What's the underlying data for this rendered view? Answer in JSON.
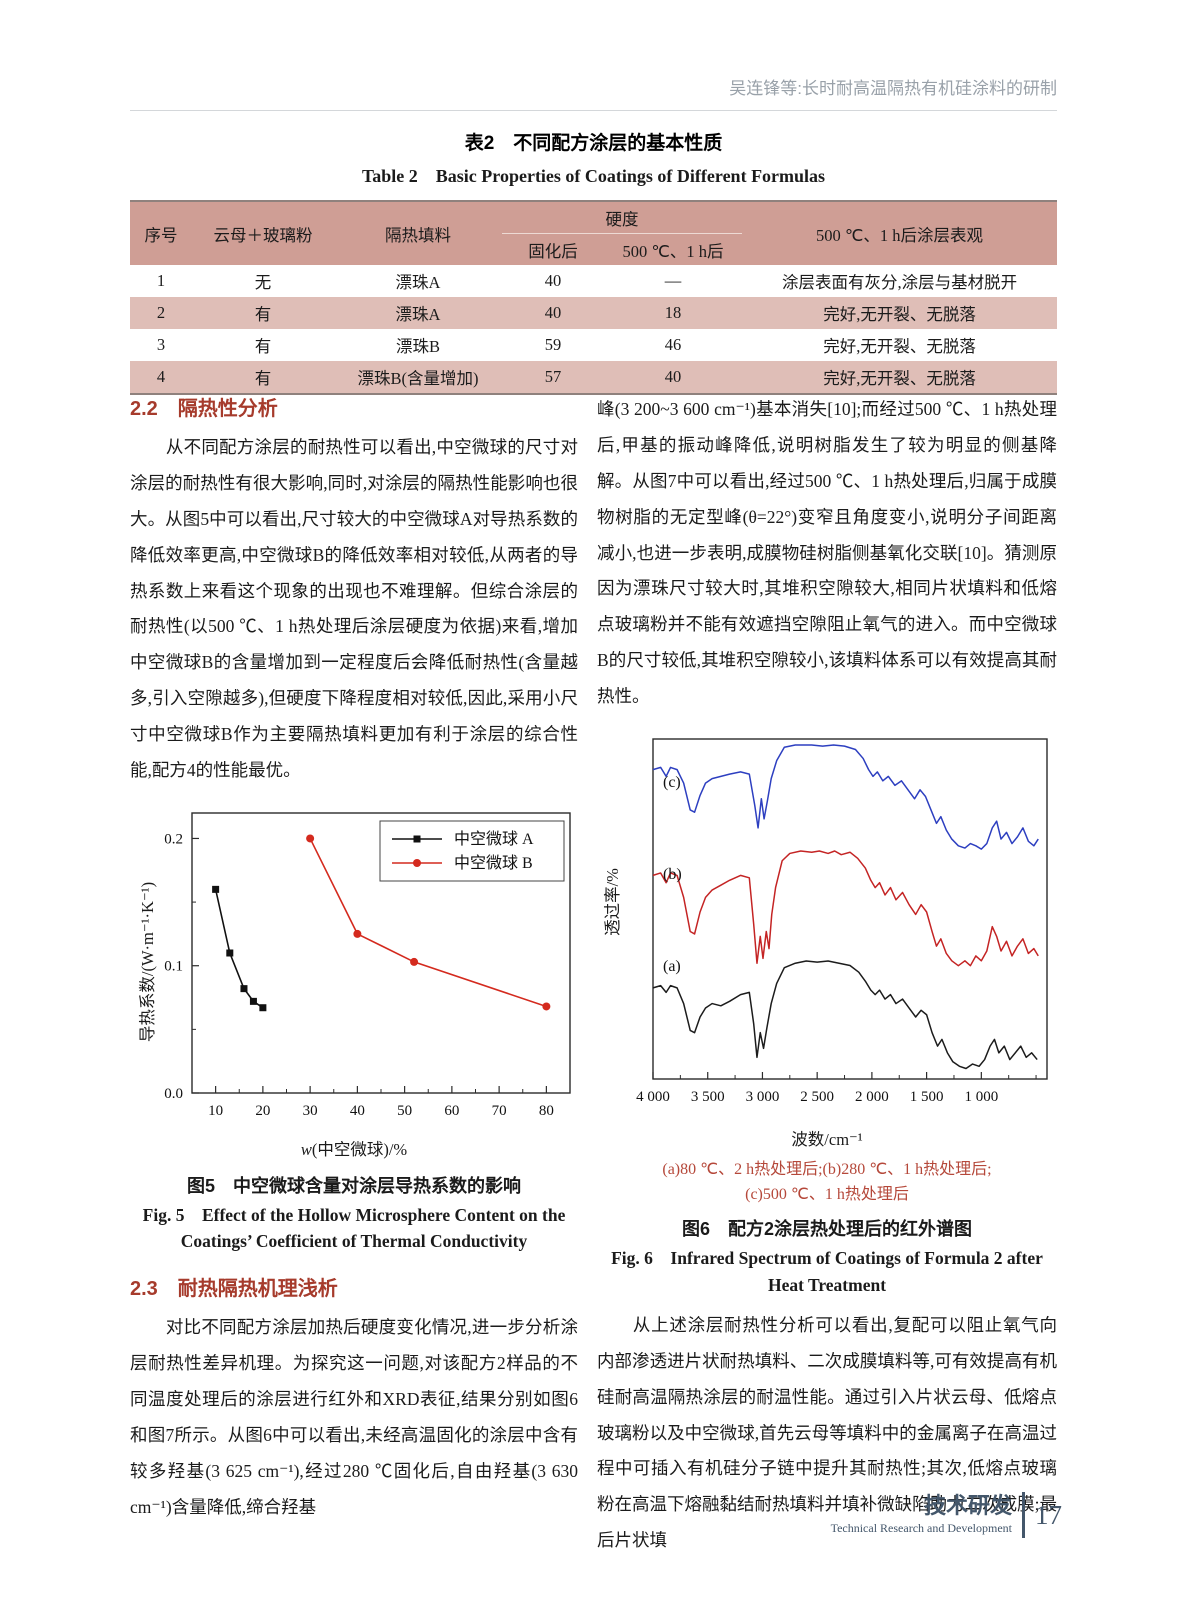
{
  "running_head": "吴连锋等:长时耐高温隔热有机硅涂料的研制",
  "table2": {
    "title_cn": "表2　不同配方涂层的基本性质",
    "title_en": "Table 2　Basic Properties of Coatings of Different Formulas",
    "headers": {
      "no": "序号",
      "mica": "云母＋玻璃粉",
      "filler": "隔热填料",
      "hardness_group": "硬度",
      "cured": "固化后",
      "after500": "500 ℃、1 h后",
      "appearance": "500 ℃、1 h后涂层表观"
    },
    "rows": [
      {
        "no": "1",
        "mica": "无",
        "filler": "漂珠A",
        "cured": "40",
        "after500": "—",
        "appearance": "涂层表面有灰分,涂层与基材脱开"
      },
      {
        "no": "2",
        "mica": "有",
        "filler": "漂珠A",
        "cured": "40",
        "after500": "18",
        "appearance": "完好,无开裂、无脱落"
      },
      {
        "no": "3",
        "mica": "有",
        "filler": "漂珠B",
        "cured": "59",
        "after500": "46",
        "appearance": "完好,无开裂、无脱落"
      },
      {
        "no": "4",
        "mica": "有",
        "filler": "漂珠B(含量增加)",
        "cured": "57",
        "after500": "40",
        "appearance": "完好,无开裂、无脱落"
      }
    ]
  },
  "sections": {
    "s22_heading": "2.2　隔热性分析",
    "s22_body": "从不同配方涂层的耐热性可以看出,中空微球的尺寸对涂层的耐热性有很大影响,同时,对涂层的隔热性能影响也很大。从图5中可以看出,尺寸较大的中空微球A对导热系数的降低效率更高,中空微球B的降低效率相对较低,从两者的导热系数上来看这个现象的出现也不难理解。但综合涂层的耐热性(以500 ℃、1 h热处理后涂层硬度为依据)来看,增加中空微球B的含量增加到一定程度后会降低耐热性(含量越多,引入空隙越多),但硬度下降程度相对较低,因此,采用小尺寸中空微球B作为主要隔热填料更加有利于涂层的综合性能,配方4的性能最优。",
    "right_top": "峰(3 200~3 600 cm⁻¹)基本消失[10];而经过500 ℃、1 h热处理后,甲基的振动峰降低,说明树脂发生了较为明显的侧基降解。从图7中可以看出,经过500 ℃、1 h热处理后,归属于成膜物树脂的无定型峰(θ=22°)变窄且角度变小,说明分子间距离减小,也进一步表明,成膜物硅树脂侧基氧化交联[10]。猜测原因为漂珠尺寸较大时,其堆积空隙较大,相同片状填料和低熔点玻璃粉并不能有效遮挡空隙阻止氧气的进入。而中空微球B的尺寸较低,其堆积空隙较小,该填料体系可以有效提高其耐热性。",
    "s23_heading": "2.3　耐热隔热机理浅析",
    "s23_body": "对比不同配方涂层加热后硬度变化情况,进一步分析涂层耐热性差异机理。为探究这一问题,对该配方2样品的不同温度处理后的涂层进行红外和XRD表征,结果分别如图6和图7所示。从图6中可以看出,未经高温固化的涂层中含有较多羟基(3 625 cm⁻¹),经过280 ℃固化后,自由羟基(3 630 cm⁻¹)含量降低,缔合羟基",
    "right_bottom": "从上述涂层耐热性分析可以看出,复配可以阻止氧气向内部渗透进片状耐热填料、二次成膜填料等,可有效提高有机硅耐高温隔热涂层的耐温性能。通过引入片状云母、低熔点玻璃粉以及中空微球,首先云母等填料中的金属离子在高温过程中可插入有机硅分子链中提升其耐热性;其次,低熔点玻璃粉在高温下熔融黏结耐热填料并填补微缺陷助力二次成膜;最后片状填"
  },
  "fig5": {
    "caption_cn": "图5　中空微球含量对涂层导热系数的影响",
    "caption_en_1": "Fig. 5　Effect of the Hollow Microsphere Content on the",
    "caption_en_2": "Coatings’ Coefficient of Thermal Conductivity"
  },
  "fig6": {
    "note_1": "(a)80 ℃、2 h热处理后;(b)280 ℃、1 h热处理后;",
    "note_2": "(c)500 ℃、1 h热处理后",
    "caption_cn": "图6　配方2涂层热处理后的红外谱图",
    "caption_en_1": "Fig. 6　Infrared Spectrum of Coatings of Formula 2 after",
    "caption_en_2": "Heat Treatment"
  },
  "footer": {
    "section_cn": "技术研发",
    "section_en": "Technical Research and Development",
    "page_number": "17"
  },
  "chart_data": [
    {
      "id": "fig5",
      "type": "line",
      "title": "",
      "xlabel_var": "w",
      "xlabel_rest": "(中空微球)/%",
      "ylabel": "导热系数/(W·m⁻¹·K⁻¹)",
      "xlim": [
        5,
        85
      ],
      "ylim": [
        0,
        0.22
      ],
      "x_major_ticks": [
        10,
        20,
        30,
        40,
        50,
        60,
        70,
        80
      ],
      "x_minor_step": 5,
      "y_major_ticks": [
        0,
        0.1,
        0.2
      ],
      "y_tick_labels": [
        "0.0",
        "0.1",
        "0.2"
      ],
      "y_minor_ticks": [
        0.05,
        0.15
      ],
      "grid": false,
      "legend_position": "top-right",
      "series": [
        {
          "name": "中空微球 A",
          "color": "#111111",
          "marker": "square",
          "points": [
            [
              10,
              0.16
            ],
            [
              13,
              0.11
            ],
            [
              16,
              0.082
            ],
            [
              18,
              0.072
            ],
            [
              20,
              0.067
            ]
          ]
        },
        {
          "name": "中空微球 B",
          "color": "#d42a1e",
          "marker": "circle",
          "points": [
            [
              30,
              0.2
            ],
            [
              40,
              0.125
            ],
            [
              52,
              0.103
            ],
            [
              80,
              0.068
            ]
          ]
        }
      ]
    },
    {
      "id": "fig6",
      "type": "line",
      "title": "",
      "xlabel": "波数/cm⁻¹",
      "ylabel": "透过率/%",
      "x_axis_reversed": true,
      "xlim": [
        4000,
        400
      ],
      "x_major_ticks": [
        4000,
        3500,
        3000,
        2500,
        2000,
        1500,
        1000
      ],
      "x_tick_labels": [
        "4 000",
        "3 500",
        "3 000",
        "2 500",
        "2 000",
        "1 500",
        "1 000"
      ],
      "x_minor_step": 250,
      "y_tick_labels": [],
      "grid": false,
      "series": [
        {
          "name": "(c)",
          "color": "#2d3fc0",
          "band": [
            14,
            112
          ],
          "label_xy": [
            66,
            56
          ],
          "points": [
            [
              4000,
              0.78
            ],
            [
              3930,
              0.8
            ],
            [
              3880,
              0.72
            ],
            [
              3840,
              0.8
            ],
            [
              3780,
              0.78
            ],
            [
              3720,
              0.66
            ],
            [
              3660,
              0.42
            ],
            [
              3620,
              0.4
            ],
            [
              3570,
              0.55
            ],
            [
              3520,
              0.66
            ],
            [
              3460,
              0.7
            ],
            [
              3380,
              0.72
            ],
            [
              3300,
              0.74
            ],
            [
              3200,
              0.76
            ],
            [
              3120,
              0.74
            ],
            [
              3070,
              0.46
            ],
            [
              3040,
              0.26
            ],
            [
              3010,
              0.52
            ],
            [
              2985,
              0.34
            ],
            [
              2955,
              0.5
            ],
            [
              2920,
              0.7
            ],
            [
              2870,
              0.86
            ],
            [
              2800,
              0.98
            ],
            [
              2700,
              1
            ],
            [
              2550,
              1
            ],
            [
              2450,
              0.99
            ],
            [
              2350,
              1
            ],
            [
              2250,
              0.99
            ],
            [
              2150,
              0.96
            ],
            [
              2080,
              0.88
            ],
            [
              2030,
              0.78
            ],
            [
              1990,
              0.72
            ],
            [
              1950,
              0.76
            ],
            [
              1900,
              0.68
            ],
            [
              1850,
              0.72
            ],
            [
              1790,
              0.64
            ],
            [
              1730,
              0.68
            ],
            [
              1670,
              0.6
            ],
            [
              1610,
              0.52
            ],
            [
              1560,
              0.6
            ],
            [
              1510,
              0.54
            ],
            [
              1460,
              0.42
            ],
            [
              1410,
              0.3
            ],
            [
              1370,
              0.36
            ],
            [
              1320,
              0.24
            ],
            [
              1270,
              0.16
            ],
            [
              1210,
              0.1
            ],
            [
              1150,
              0.08
            ],
            [
              1100,
              0.12
            ],
            [
              1050,
              0.1
            ],
            [
              1000,
              0.07
            ],
            [
              950,
              0.12
            ],
            [
              900,
              0.26
            ],
            [
              860,
              0.32
            ],
            [
              820,
              0.16
            ],
            [
              770,
              0.22
            ],
            [
              720,
              0.12
            ],
            [
              670,
              0.18
            ],
            [
              620,
              0.26
            ],
            [
              570,
              0.14
            ],
            [
              520,
              0.1
            ],
            [
              480,
              0.16
            ]
          ]
        },
        {
          "name": "(b)",
          "color": "#c42424",
          "band": [
            120,
            122
          ],
          "label_xy": [
            66,
            148
          ],
          "points": [
            [
              4000,
              0.8
            ],
            [
              3930,
              0.82
            ],
            [
              3880,
              0.74
            ],
            [
              3840,
              0.82
            ],
            [
              3780,
              0.8
            ],
            [
              3720,
              0.62
            ],
            [
              3660,
              0.34
            ],
            [
              3620,
              0.32
            ],
            [
              3570,
              0.5
            ],
            [
              3520,
              0.62
            ],
            [
              3460,
              0.68
            ],
            [
              3380,
              0.72
            ],
            [
              3300,
              0.76
            ],
            [
              3200,
              0.8
            ],
            [
              3120,
              0.78
            ],
            [
              3080,
              0.4
            ],
            [
              3050,
              0.08
            ],
            [
              3020,
              0.3
            ],
            [
              2995,
              0.12
            ],
            [
              2965,
              0.34
            ],
            [
              2940,
              0.2
            ],
            [
              2915,
              0.48
            ],
            [
              2880,
              0.7
            ],
            [
              2820,
              0.92
            ],
            [
              2750,
              0.98
            ],
            [
              2650,
              1
            ],
            [
              2550,
              0.99
            ],
            [
              2480,
              1
            ],
            [
              2400,
              0.98
            ],
            [
              2340,
              1
            ],
            [
              2280,
              0.97
            ],
            [
              2200,
              0.99
            ],
            [
              2130,
              0.94
            ],
            [
              2060,
              0.86
            ],
            [
              2010,
              0.76
            ],
            [
              1970,
              0.7
            ],
            [
              1930,
              0.74
            ],
            [
              1880,
              0.64
            ],
            [
              1830,
              0.7
            ],
            [
              1780,
              0.6
            ],
            [
              1720,
              0.66
            ],
            [
              1660,
              0.56
            ],
            [
              1600,
              0.48
            ],
            [
              1550,
              0.56
            ],
            [
              1500,
              0.5
            ],
            [
              1450,
              0.34
            ],
            [
              1410,
              0.22
            ],
            [
              1370,
              0.28
            ],
            [
              1320,
              0.16
            ],
            [
              1270,
              0.1
            ],
            [
              1210,
              0.06
            ],
            [
              1150,
              0.1
            ],
            [
              1100,
              0.06
            ],
            [
              1050,
              0.14
            ],
            [
              1000,
              0.1
            ],
            [
              950,
              0.18
            ],
            [
              900,
              0.38
            ],
            [
              860,
              0.3
            ],
            [
              820,
              0.18
            ],
            [
              770,
              0.26
            ],
            [
              720,
              0.14
            ],
            [
              670,
              0.22
            ],
            [
              620,
              0.28
            ],
            [
              570,
              0.16
            ],
            [
              520,
              0.2
            ],
            [
              480,
              0.14
            ]
          ]
        },
        {
          "name": "(a)",
          "color": "#1c1c1c",
          "band": [
            230,
            112
          ],
          "label_xy": [
            66,
            240
          ],
          "points": [
            [
              4000,
              0.76
            ],
            [
              3930,
              0.78
            ],
            [
              3880,
              0.72
            ],
            [
              3840,
              0.78
            ],
            [
              3780,
              0.76
            ],
            [
              3720,
              0.62
            ],
            [
              3660,
              0.38
            ],
            [
              3620,
              0.36
            ],
            [
              3570,
              0.5
            ],
            [
              3520,
              0.58
            ],
            [
              3460,
              0.62
            ],
            [
              3380,
              0.6
            ],
            [
              3300,
              0.64
            ],
            [
              3200,
              0.7
            ],
            [
              3120,
              0.72
            ],
            [
              3080,
              0.44
            ],
            [
              3050,
              0.14
            ],
            [
              3020,
              0.36
            ],
            [
              2990,
              0.22
            ],
            [
              2960,
              0.4
            ],
            [
              2920,
              0.62
            ],
            [
              2870,
              0.8
            ],
            [
              2800,
              0.94
            ],
            [
              2700,
              0.98
            ],
            [
              2600,
              1
            ],
            [
              2500,
              0.99
            ],
            [
              2400,
              1
            ],
            [
              2300,
              0.98
            ],
            [
              2200,
              0.96
            ],
            [
              2120,
              0.9
            ],
            [
              2060,
              0.82
            ],
            [
              2010,
              0.74
            ],
            [
              1970,
              0.7
            ],
            [
              1930,
              0.74
            ],
            [
              1880,
              0.66
            ],
            [
              1830,
              0.7
            ],
            [
              1780,
              0.62
            ],
            [
              1720,
              0.66
            ],
            [
              1660,
              0.58
            ],
            [
              1600,
              0.5
            ],
            [
              1550,
              0.56
            ],
            [
              1500,
              0.52
            ],
            [
              1450,
              0.36
            ],
            [
              1400,
              0.24
            ],
            [
              1360,
              0.3
            ],
            [
              1310,
              0.18
            ],
            [
              1260,
              0.1
            ],
            [
              1200,
              0.06
            ],
            [
              1140,
              0.04
            ],
            [
              1080,
              0.08
            ],
            [
              1020,
              0.06
            ],
            [
              970,
              0.12
            ],
            [
              920,
              0.24
            ],
            [
              880,
              0.3
            ],
            [
              840,
              0.18
            ],
            [
              790,
              0.24
            ],
            [
              740,
              0.12
            ],
            [
              690,
              0.18
            ],
            [
              640,
              0.24
            ],
            [
              590,
              0.14
            ],
            [
              540,
              0.18
            ],
            [
              490,
              0.12
            ]
          ]
        }
      ]
    }
  ]
}
